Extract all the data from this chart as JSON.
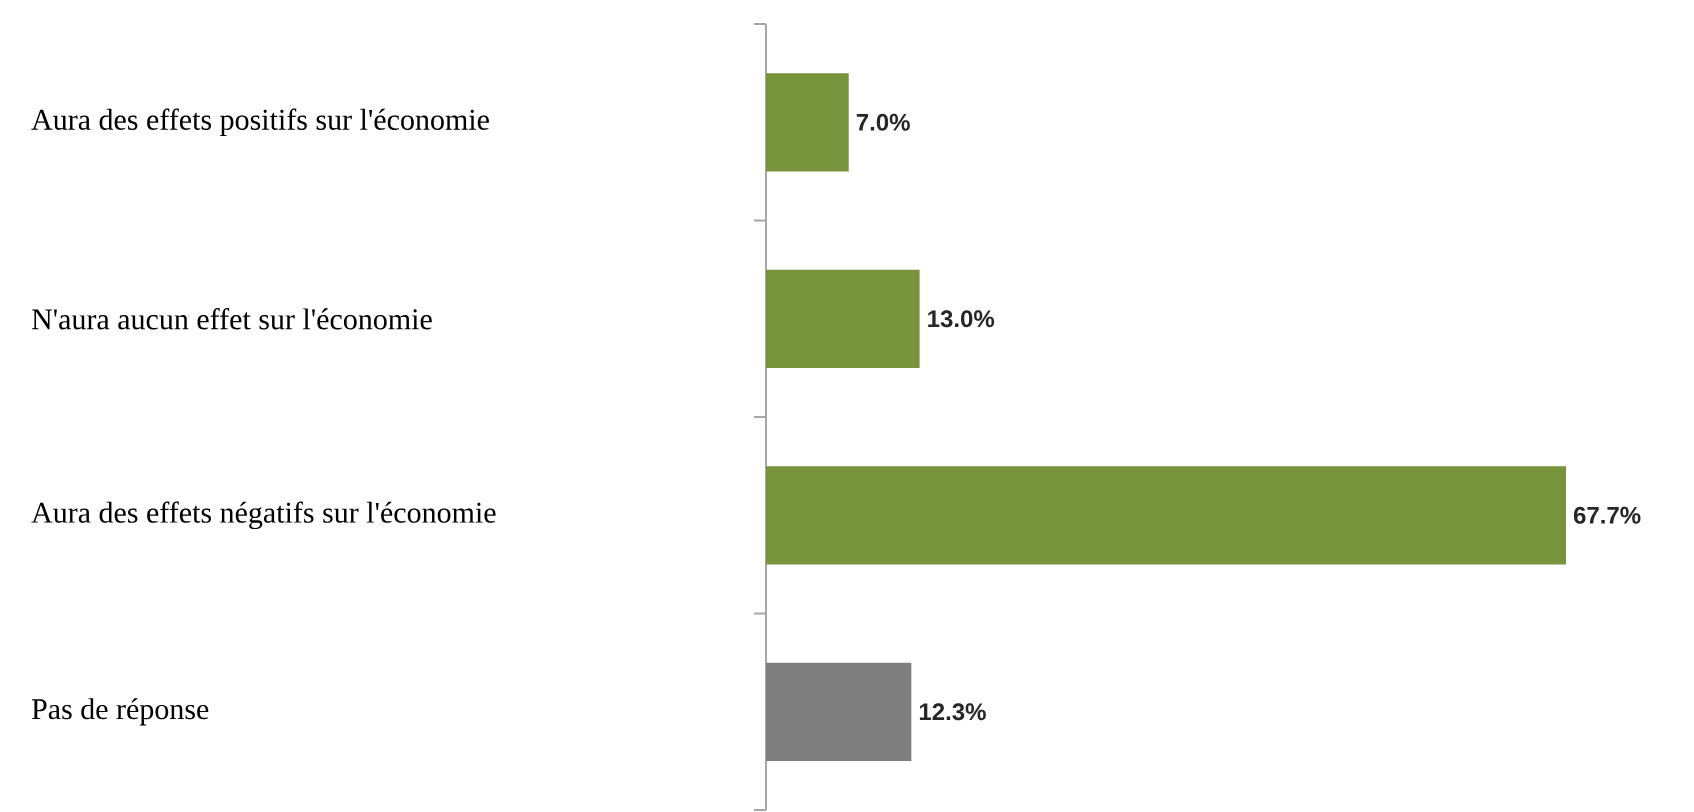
{
  "chart_data": {
    "type": "bar",
    "orientation": "horizontal",
    "categories": [
      "Aura des effets positifs sur l'économie",
      "N'aura aucun effet sur l'économie",
      "Aura des effets négatifs sur l'économie",
      "Pas de réponse"
    ],
    "values": [
      7.0,
      13.0,
      67.7,
      12.3
    ],
    "colors": [
      "#77933c",
      "#77933c",
      "#77933c",
      "#7f7f7f"
    ],
    "value_labels": [
      "7.0%",
      "13.0%",
      "67.7%",
      "12.3%"
    ]
  }
}
